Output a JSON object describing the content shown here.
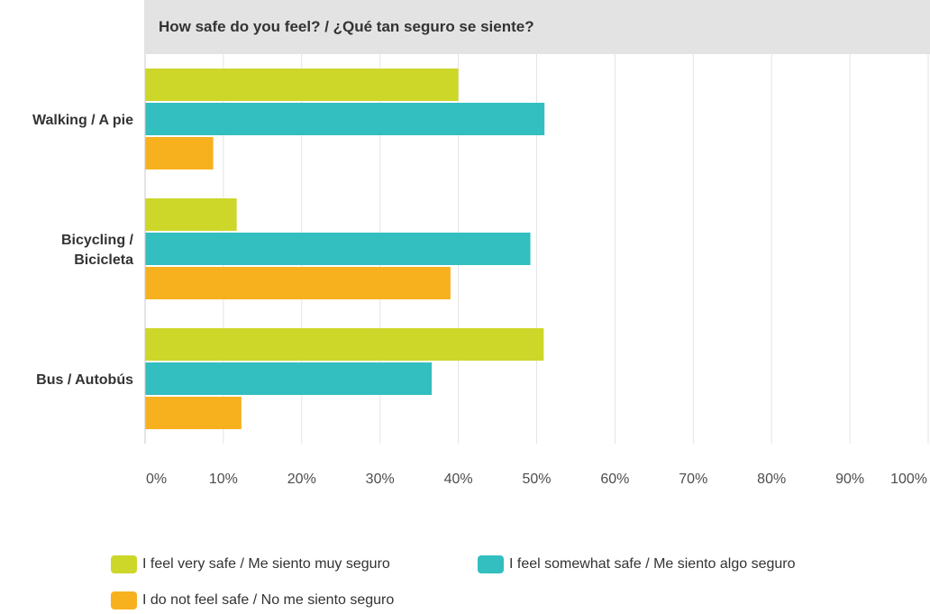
{
  "chart_data": {
    "type": "bar",
    "orientation": "horizontal",
    "title": "How safe do you feel? / ¿Qué tan seguro se siente?",
    "categories": [
      [
        "Walking / A pie"
      ],
      [
        "Bicycling /",
        "Bicicleta"
      ],
      [
        "Bus / Autobús"
      ]
    ],
    "series": [
      {
        "name": "I feel very safe / Me siento muy seguro",
        "color": "#cdd72a",
        "values": [
          40.0,
          11.7,
          50.9
        ]
      },
      {
        "name": "I feel somewhat safe / Me siento algo seguro",
        "color": "#33bec0",
        "values": [
          51.0,
          49.2,
          36.6
        ]
      },
      {
        "name": "I do not feel safe / No me siento seguro",
        "color": "#f7b11f",
        "values": [
          8.7,
          39.0,
          12.3
        ]
      }
    ],
    "xlim": [
      0,
      100
    ],
    "x_ticks": [
      "0%",
      "10%",
      "20%",
      "30%",
      "40%",
      "50%",
      "60%",
      "70%",
      "80%",
      "90%",
      "100%"
    ],
    "xlabel": "",
    "ylabel": "",
    "grid": "vertical",
    "legend_position": "bottom"
  }
}
